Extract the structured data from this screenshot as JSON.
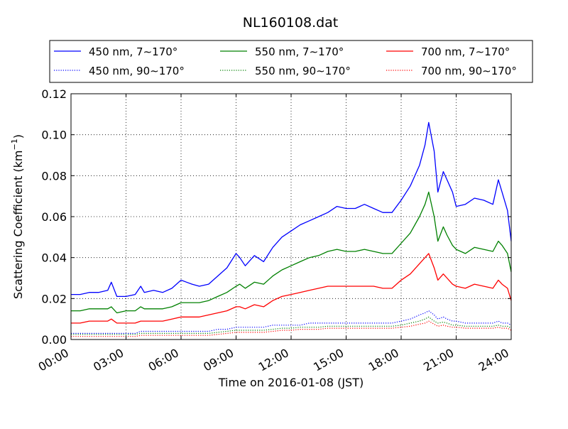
{
  "chart_data": {
    "type": "line",
    "title": "NL160108.dat",
    "xlabel": "Time on 2016-01-08 (JST)",
    "ylabel": "Scattering Coefficient (km",
    "ylabel_sup": "−1",
    "ylabel_close": ")",
    "x_unit": "hours",
    "xlim": [
      0,
      24
    ],
    "ylim": [
      0,
      0.12
    ],
    "grid": true,
    "grid_style": "dotted",
    "legend_position": "top-outside",
    "x_ticks": [
      {
        "value": 0,
        "label": "00:00"
      },
      {
        "value": 3,
        "label": "03:00"
      },
      {
        "value": 6,
        "label": "06:00"
      },
      {
        "value": 9,
        "label": "09:00"
      },
      {
        "value": 12,
        "label": "12:00"
      },
      {
        "value": 15,
        "label": "15:00"
      },
      {
        "value": 18,
        "label": "18:00"
      },
      {
        "value": 21,
        "label": "21:00"
      },
      {
        "value": 24,
        "label": "24:00"
      }
    ],
    "y_ticks": [
      {
        "value": 0,
        "label": "0.00"
      },
      {
        "value": 0.02,
        "label": "0.02"
      },
      {
        "value": 0.04,
        "label": "0.04"
      },
      {
        "value": 0.06,
        "label": "0.06"
      },
      {
        "value": 0.08,
        "label": "0.08"
      },
      {
        "value": 0.1,
        "label": "0.10"
      },
      {
        "value": 0.12,
        "label": "0.12"
      }
    ],
    "x": [
      0,
      0.5,
      1,
      1.5,
      2,
      2.2,
      2.5,
      3,
      3.5,
      3.8,
      4,
      4.5,
      5,
      5.5,
      6,
      6.3,
      6.6,
      7,
      7.5,
      8,
      8.5,
      9,
      9.2,
      9.5,
      10,
      10.5,
      11,
      11.5,
      12,
      12.5,
      13,
      13.5,
      14,
      14.5,
      15,
      15.5,
      16,
      16.5,
      17,
      17.5,
      18,
      18.5,
      19,
      19.3,
      19.5,
      19.8,
      20,
      20.3,
      20.5,
      20.8,
      21,
      21.5,
      22,
      22.5,
      23,
      23.3,
      23.5,
      23.8,
      24
    ],
    "series": [
      {
        "name": "450 nm, 7∼170°",
        "color": "#0000ff",
        "style": "solid",
        "values": [
          0.022,
          0.022,
          0.023,
          0.023,
          0.024,
          0.028,
          0.021,
          0.021,
          0.022,
          0.026,
          0.023,
          0.024,
          0.023,
          0.025,
          0.029,
          0.028,
          0.027,
          0.026,
          0.027,
          0.031,
          0.035,
          0.042,
          0.04,
          0.036,
          0.041,
          0.038,
          0.045,
          0.05,
          0.053,
          0.056,
          0.058,
          0.06,
          0.062,
          0.065,
          0.064,
          0.064,
          0.066,
          0.064,
          0.062,
          0.062,
          0.068,
          0.075,
          0.085,
          0.095,
          0.106,
          0.092,
          0.072,
          0.082,
          0.078,
          0.072,
          0.065,
          0.066,
          0.069,
          0.068,
          0.066,
          0.078,
          0.072,
          0.063,
          0.048
        ]
      },
      {
        "name": "550 nm, 7∼170°",
        "color": "#008000",
        "style": "solid",
        "values": [
          0.014,
          0.014,
          0.015,
          0.015,
          0.015,
          0.016,
          0.013,
          0.014,
          0.014,
          0.016,
          0.015,
          0.015,
          0.015,
          0.016,
          0.018,
          0.018,
          0.018,
          0.018,
          0.019,
          0.021,
          0.023,
          0.026,
          0.027,
          0.025,
          0.028,
          0.027,
          0.031,
          0.034,
          0.036,
          0.038,
          0.04,
          0.041,
          0.043,
          0.044,
          0.043,
          0.043,
          0.044,
          0.043,
          0.042,
          0.042,
          0.047,
          0.052,
          0.06,
          0.066,
          0.072,
          0.06,
          0.048,
          0.055,
          0.051,
          0.046,
          0.044,
          0.042,
          0.045,
          0.044,
          0.043,
          0.048,
          0.046,
          0.042,
          0.033
        ]
      },
      {
        "name": "700 nm, 7∼170°",
        "color": "#ff0000",
        "style": "solid",
        "values": [
          0.008,
          0.008,
          0.009,
          0.009,
          0.009,
          0.01,
          0.008,
          0.008,
          0.008,
          0.009,
          0.009,
          0.009,
          0.009,
          0.01,
          0.011,
          0.011,
          0.011,
          0.011,
          0.012,
          0.013,
          0.014,
          0.016,
          0.016,
          0.015,
          0.017,
          0.016,
          0.019,
          0.021,
          0.022,
          0.023,
          0.024,
          0.025,
          0.026,
          0.026,
          0.026,
          0.026,
          0.026,
          0.026,
          0.025,
          0.025,
          0.029,
          0.032,
          0.037,
          0.04,
          0.042,
          0.035,
          0.029,
          0.032,
          0.03,
          0.027,
          0.026,
          0.025,
          0.027,
          0.026,
          0.025,
          0.029,
          0.027,
          0.025,
          0.019
        ]
      },
      {
        "name": "450 nm, 90∼170°",
        "color": "#0000ff",
        "style": "dotted",
        "values": [
          0.003,
          0.003,
          0.003,
          0.003,
          0.003,
          0.003,
          0.003,
          0.003,
          0.003,
          0.004,
          0.004,
          0.004,
          0.004,
          0.004,
          0.004,
          0.004,
          0.004,
          0.004,
          0.004,
          0.005,
          0.005,
          0.006,
          0.006,
          0.006,
          0.006,
          0.006,
          0.007,
          0.007,
          0.007,
          0.007,
          0.008,
          0.008,
          0.008,
          0.008,
          0.008,
          0.008,
          0.008,
          0.008,
          0.008,
          0.008,
          0.009,
          0.01,
          0.012,
          0.013,
          0.014,
          0.012,
          0.01,
          0.011,
          0.01,
          0.009,
          0.009,
          0.008,
          0.008,
          0.008,
          0.008,
          0.009,
          0.008,
          0.008,
          0.007
        ]
      },
      {
        "name": "550 nm, 90∼170°",
        "color": "#008000",
        "style": "dotted",
        "values": [
          0.0025,
          0.0025,
          0.0025,
          0.0025,
          0.0025,
          0.0025,
          0.0025,
          0.0025,
          0.0025,
          0.003,
          0.003,
          0.003,
          0.003,
          0.003,
          0.003,
          0.003,
          0.003,
          0.003,
          0.003,
          0.0035,
          0.004,
          0.0045,
          0.0045,
          0.0045,
          0.0045,
          0.0045,
          0.005,
          0.0055,
          0.0055,
          0.006,
          0.006,
          0.006,
          0.0065,
          0.0065,
          0.0065,
          0.0065,
          0.0065,
          0.0065,
          0.0065,
          0.0065,
          0.007,
          0.008,
          0.009,
          0.01,
          0.011,
          0.009,
          0.008,
          0.0085,
          0.008,
          0.007,
          0.007,
          0.0065,
          0.0065,
          0.0065,
          0.0065,
          0.007,
          0.0065,
          0.0065,
          0.0055
        ]
      },
      {
        "name": "700 nm, 90∼170°",
        "color": "#ff0000",
        "style": "dotted",
        "values": [
          0.0015,
          0.0015,
          0.0015,
          0.0015,
          0.0015,
          0.0015,
          0.0015,
          0.0015,
          0.0015,
          0.002,
          0.002,
          0.002,
          0.002,
          0.002,
          0.002,
          0.002,
          0.002,
          0.002,
          0.002,
          0.0025,
          0.003,
          0.0035,
          0.0035,
          0.0035,
          0.0035,
          0.0035,
          0.004,
          0.0045,
          0.0045,
          0.005,
          0.005,
          0.005,
          0.0055,
          0.0055,
          0.0055,
          0.0055,
          0.0055,
          0.0055,
          0.0055,
          0.0055,
          0.006,
          0.0065,
          0.0075,
          0.008,
          0.009,
          0.0075,
          0.0065,
          0.007,
          0.0065,
          0.006,
          0.006,
          0.0055,
          0.0055,
          0.0055,
          0.0055,
          0.006,
          0.0055,
          0.0055,
          0.0045
        ]
      }
    ]
  }
}
